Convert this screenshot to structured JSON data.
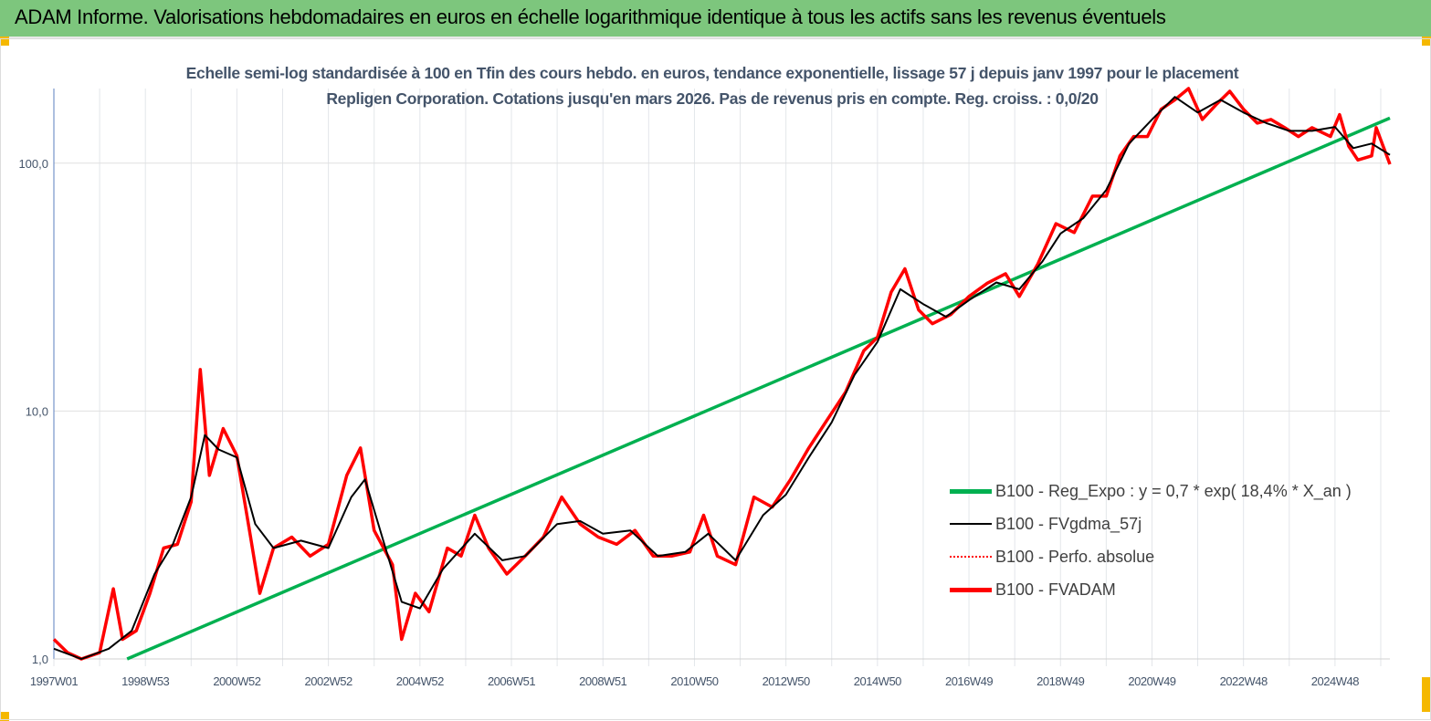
{
  "header": {
    "title": "ADAM Informe. Valorisations hebdomadaires en euros en échelle logarithmique identique à tous les actifs sans les revenus éventuels"
  },
  "chart_data": {
    "type": "line",
    "title": "Echelle semi-log standardisée à 100 en Tfin des cours hebdo. en euros, tendance exponentielle, lissage 57 j depuis janv 1997 pour le placement Repligen Corporation. Cotations jusqu'en mars 2026. Pas de revenus pris en compte. Reg. croiss. : 0,0/20",
    "y_scale": "log",
    "ylim": [
      1,
      200
    ],
    "xlim": [
      1997.0,
      2026.2
    ],
    "y_ticks": [
      {
        "value": 1,
        "label": "1,0"
      },
      {
        "value": 10,
        "label": "10,0"
      },
      {
        "value": 100,
        "label": "100,0"
      }
    ],
    "x_ticks": [
      {
        "value": 1997,
        "label": "1997W01"
      },
      {
        "value": 1999,
        "label": "1998W53"
      },
      {
        "value": 2001,
        "label": "2000W52"
      },
      {
        "value": 2003,
        "label": "2002W52"
      },
      {
        "value": 2005,
        "label": "2004W52"
      },
      {
        "value": 2007,
        "label": "2006W51"
      },
      {
        "value": 2009,
        "label": "2008W51"
      },
      {
        "value": 2011,
        "label": "2010W50"
      },
      {
        "value": 2013,
        "label": "2012W50"
      },
      {
        "value": 2015,
        "label": "2014W50"
      },
      {
        "value": 2017,
        "label": "2016W49"
      },
      {
        "value": 2019,
        "label": "2018W49"
      },
      {
        "value": 2021,
        "label": "2020W49"
      },
      {
        "value": 2023,
        "label": "2022W48"
      },
      {
        "value": 2025,
        "label": "2024W48"
      }
    ],
    "grid": {
      "horizontal": true,
      "vertical": "yearly"
    },
    "legend_placement": "bottom-right",
    "series": [
      {
        "name": "B100 - Reg_Expo : y = 0,7 * exp( 18,4% *  X_an )",
        "color": "#00b050",
        "style": "solid-thick",
        "points": [
          [
            1998.6,
            1.0
          ],
          [
            2026.2,
            152
          ]
        ]
      },
      {
        "name": "B100 - FVgdma_57j",
        "color": "#000000",
        "style": "solid",
        "points": [
          [
            1997.0,
            1.1
          ],
          [
            1997.6,
            1.0
          ],
          [
            1998.2,
            1.1
          ],
          [
            1998.7,
            1.3
          ],
          [
            1999.2,
            2.2
          ],
          [
            1999.6,
            2.9
          ],
          [
            2000.0,
            4.5
          ],
          [
            2000.3,
            8.0
          ],
          [
            2000.6,
            7.0
          ],
          [
            2001.0,
            6.5
          ],
          [
            2001.4,
            3.5
          ],
          [
            2001.8,
            2.8
          ],
          [
            2002.4,
            3.0
          ],
          [
            2003.0,
            2.8
          ],
          [
            2003.5,
            4.5
          ],
          [
            2003.8,
            5.3
          ],
          [
            2004.2,
            3.0
          ],
          [
            2004.6,
            1.7
          ],
          [
            2005.0,
            1.6
          ],
          [
            2005.5,
            2.3
          ],
          [
            2006.2,
            3.2
          ],
          [
            2006.8,
            2.5
          ],
          [
            2007.3,
            2.6
          ],
          [
            2008.0,
            3.5
          ],
          [
            2008.5,
            3.6
          ],
          [
            2009.0,
            3.2
          ],
          [
            2009.6,
            3.3
          ],
          [
            2010.2,
            2.6
          ],
          [
            2010.8,
            2.7
          ],
          [
            2011.3,
            3.2
          ],
          [
            2011.9,
            2.5
          ],
          [
            2012.5,
            3.8
          ],
          [
            2013.0,
            4.6
          ],
          [
            2013.5,
            6.5
          ],
          [
            2014.0,
            9.0
          ],
          [
            2014.5,
            14
          ],
          [
            2015.0,
            19
          ],
          [
            2015.5,
            31
          ],
          [
            2016.0,
            27
          ],
          [
            2016.5,
            24
          ],
          [
            2017.0,
            28
          ],
          [
            2017.6,
            33
          ],
          [
            2018.1,
            31
          ],
          [
            2018.6,
            40
          ],
          [
            2019.0,
            52
          ],
          [
            2019.5,
            60
          ],
          [
            2020.0,
            78
          ],
          [
            2020.5,
            120
          ],
          [
            2021.0,
            150
          ],
          [
            2021.5,
            185
          ],
          [
            2022.0,
            160
          ],
          [
            2022.5,
            180
          ],
          [
            2023.0,
            160
          ],
          [
            2023.5,
            145
          ],
          [
            2024.0,
            135
          ],
          [
            2024.5,
            135
          ],
          [
            2025.0,
            140
          ],
          [
            2025.4,
            115
          ],
          [
            2025.8,
            120
          ],
          [
            2026.2,
            108
          ]
        ]
      },
      {
        "name": "B100 - Perfo. absolue",
        "color": "#ff0000",
        "style": "dotted",
        "points": []
      },
      {
        "name": "B100 - FVADAM",
        "color": "#ff0000",
        "style": "solid-thick",
        "points": [
          [
            1997.0,
            1.2
          ],
          [
            1997.3,
            1.06
          ],
          [
            1997.6,
            1.0
          ],
          [
            1998.0,
            1.06
          ],
          [
            1998.3,
            1.92
          ],
          [
            1998.5,
            1.2
          ],
          [
            1998.8,
            1.3
          ],
          [
            1999.1,
            1.84
          ],
          [
            1999.4,
            2.8
          ],
          [
            1999.7,
            2.9
          ],
          [
            2000.0,
            4.3
          ],
          [
            2000.2,
            14.7
          ],
          [
            2000.4,
            5.5
          ],
          [
            2000.7,
            8.5
          ],
          [
            2001.0,
            6.6
          ],
          [
            2001.3,
            3.1
          ],
          [
            2001.5,
            1.84
          ],
          [
            2001.8,
            2.8
          ],
          [
            2002.2,
            3.1
          ],
          [
            2002.6,
            2.6
          ],
          [
            2003.0,
            2.9
          ],
          [
            2003.4,
            5.5
          ],
          [
            2003.7,
            7.1
          ],
          [
            2004.0,
            3.3
          ],
          [
            2004.4,
            2.4
          ],
          [
            2004.6,
            1.2
          ],
          [
            2004.9,
            1.84
          ],
          [
            2005.2,
            1.55
          ],
          [
            2005.6,
            2.8
          ],
          [
            2005.9,
            2.6
          ],
          [
            2006.2,
            3.8
          ],
          [
            2006.5,
            2.8
          ],
          [
            2006.9,
            2.2
          ],
          [
            2007.3,
            2.6
          ],
          [
            2007.7,
            3.1
          ],
          [
            2008.1,
            4.5
          ],
          [
            2008.5,
            3.5
          ],
          [
            2008.9,
            3.1
          ],
          [
            2009.3,
            2.9
          ],
          [
            2009.7,
            3.3
          ],
          [
            2010.1,
            2.6
          ],
          [
            2010.5,
            2.6
          ],
          [
            2010.9,
            2.7
          ],
          [
            2011.2,
            3.8
          ],
          [
            2011.5,
            2.6
          ],
          [
            2011.9,
            2.4
          ],
          [
            2012.3,
            4.5
          ],
          [
            2012.7,
            4.1
          ],
          [
            2013.1,
            5.3
          ],
          [
            2013.5,
            7.1
          ],
          [
            2013.9,
            9.2
          ],
          [
            2014.3,
            11.9
          ],
          [
            2014.7,
            17.5
          ],
          [
            2015.0,
            19.8
          ],
          [
            2015.3,
            30.2
          ],
          [
            2015.6,
            37.5
          ],
          [
            2015.9,
            25.6
          ],
          [
            2016.2,
            22.5
          ],
          [
            2016.6,
            24.5
          ],
          [
            2017.0,
            29
          ],
          [
            2017.4,
            32.8
          ],
          [
            2017.8,
            35.8
          ],
          [
            2018.1,
            29
          ],
          [
            2018.5,
            39
          ],
          [
            2018.9,
            57
          ],
          [
            2019.3,
            52.5
          ],
          [
            2019.7,
            73.6
          ],
          [
            2020.0,
            73.6
          ],
          [
            2020.3,
            107
          ],
          [
            2020.6,
            128
          ],
          [
            2020.9,
            128
          ],
          [
            2021.2,
            165
          ],
          [
            2021.5,
            180
          ],
          [
            2021.8,
            200
          ],
          [
            2022.1,
            150
          ],
          [
            2022.4,
            172
          ],
          [
            2022.7,
            195
          ],
          [
            2023.0,
            165
          ],
          [
            2023.3,
            145
          ],
          [
            2023.6,
            150
          ],
          [
            2023.9,
            139
          ],
          [
            2024.2,
            128
          ],
          [
            2024.5,
            139
          ],
          [
            2024.9,
            128
          ],
          [
            2025.1,
            157
          ],
          [
            2025.3,
            117
          ],
          [
            2025.5,
            103
          ],
          [
            2025.8,
            107
          ],
          [
            2025.9,
            139
          ],
          [
            2026.2,
            99
          ]
        ]
      }
    ]
  }
}
